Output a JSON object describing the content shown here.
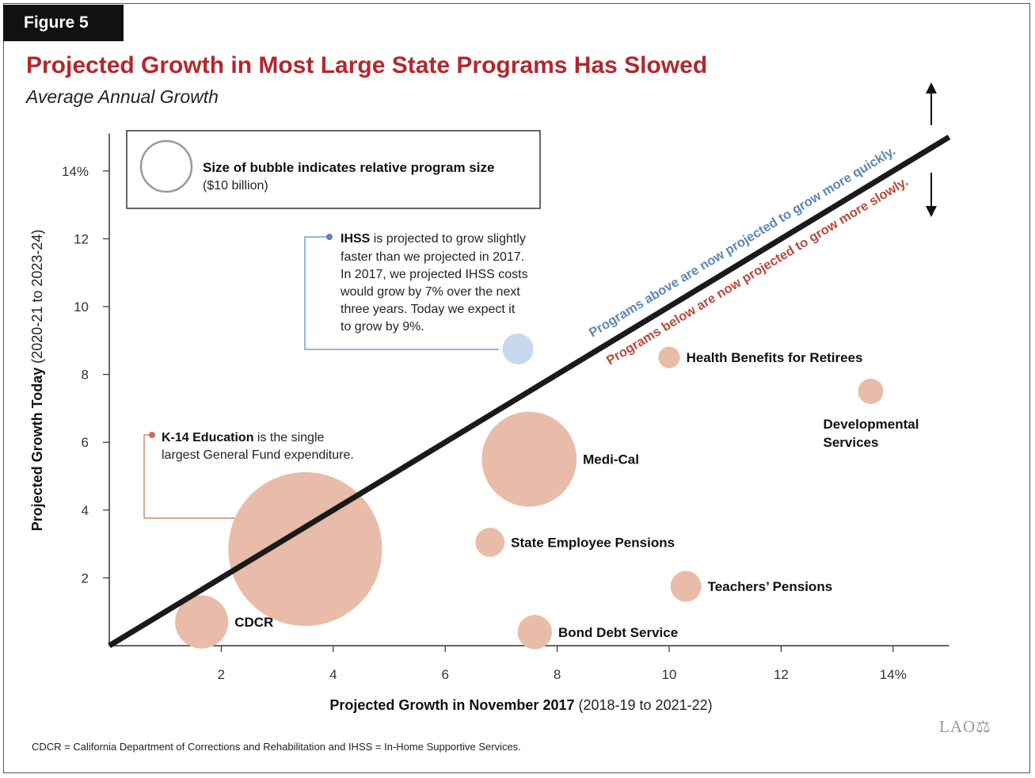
{
  "figure": {
    "tag": "Figure 5",
    "title": "Projected Growth in Most Large State Programs Has Slowed",
    "subtitle": "Average Annual Growth",
    "footnote": "CDCR = California Department of Corrections and Rehabilitation and IHSS = In-Home Supportive Services.",
    "logo": "LAO"
  },
  "legend": {
    "label_bold": "Size of bubble indicates relative program size",
    "label_sub": "($10 billion)"
  },
  "diagonal": {
    "above_text": "Programs above are now projected to grow more quickly.",
    "below_text": "Programs below are now projected to grow more slowly."
  },
  "annotations": {
    "ihss": {
      "bold": "IHSS",
      "lines": [
        " is projected to grow slightly",
        "faster than we projected in 2017.",
        "In 2017, we projected IHSS costs",
        "would grow by 7% over the next",
        "three years. Today we expect it",
        "to grow by 9%."
      ]
    },
    "k14": {
      "bold": "K-14 Education",
      "lines": [
        " is the single",
        "largest General Fund expenditure."
      ]
    }
  },
  "colors": {
    "bubble": "#e8bca8",
    "ihss_bubble": "#c8d8ee",
    "title": "#b3272d",
    "above_text": "#5b86b8",
    "below_text": "#b84a3a",
    "diagonal": "#1a1a1a"
  },
  "chart_data": {
    "type": "scatter",
    "xlabel_bold": "Projected Growth in November 2017",
    "xlabel_rest": " (2018-19 to 2021-22)",
    "ylabel_bold": "Projected Growth Today",
    "ylabel_rest": " (2020-21 to 2023-24)",
    "xlim": [
      0,
      15
    ],
    "ylim": [
      0,
      15
    ],
    "x_ticks": [
      {
        "value": 2,
        "label": "2"
      },
      {
        "value": 4,
        "label": "4"
      },
      {
        "value": 6,
        "label": "6"
      },
      {
        "value": 8,
        "label": "8"
      },
      {
        "value": 10,
        "label": "10"
      },
      {
        "value": 12,
        "label": "12"
      },
      {
        "value": 14,
        "label": "14%"
      }
    ],
    "y_ticks": [
      {
        "value": 2,
        "label": "2"
      },
      {
        "value": 4,
        "label": "4"
      },
      {
        "value": 6,
        "label": "6"
      },
      {
        "value": 8,
        "label": "8"
      },
      {
        "value": 10,
        "label": "10"
      },
      {
        "value": 12,
        "label": "12"
      },
      {
        "value": 14,
        "label": "14%"
      }
    ],
    "reference_line": {
      "from": [
        0,
        0
      ],
      "to": [
        15,
        15
      ]
    },
    "points": [
      {
        "name": "CDCR",
        "x": 1.65,
        "y": 0.7,
        "size_billion": 11,
        "label_pos": "right"
      },
      {
        "name": "K-14 Education",
        "x": 3.5,
        "y": 2.85,
        "size_billion": 92,
        "label_pos": "none"
      },
      {
        "name": "IHSS",
        "x": 7.3,
        "y": 8.75,
        "size_billion": 3.7,
        "label_pos": "none"
      },
      {
        "name": "Medi-Cal",
        "x": 7.5,
        "y": 5.5,
        "size_billion": 35,
        "label_pos": "right"
      },
      {
        "name": "State Employee Pensions",
        "x": 6.8,
        "y": 3.05,
        "size_billion": 3.3,
        "label_pos": "right"
      },
      {
        "name": "Bond Debt Service",
        "x": 7.6,
        "y": 0.4,
        "size_billion": 4.6,
        "label_pos": "right"
      },
      {
        "name": "Health Benefits for Retirees",
        "x": 10.0,
        "y": 8.5,
        "size_billion": 1.8,
        "label_pos": "right"
      },
      {
        "name": "Developmental Services",
        "x": 13.6,
        "y": 7.5,
        "size_billion": 2.5,
        "label_pos": "below"
      },
      {
        "name": "Teachers’ Pensions",
        "x": 10.3,
        "y": 1.75,
        "size_billion": 3.7,
        "label_pos": "right"
      }
    ]
  }
}
